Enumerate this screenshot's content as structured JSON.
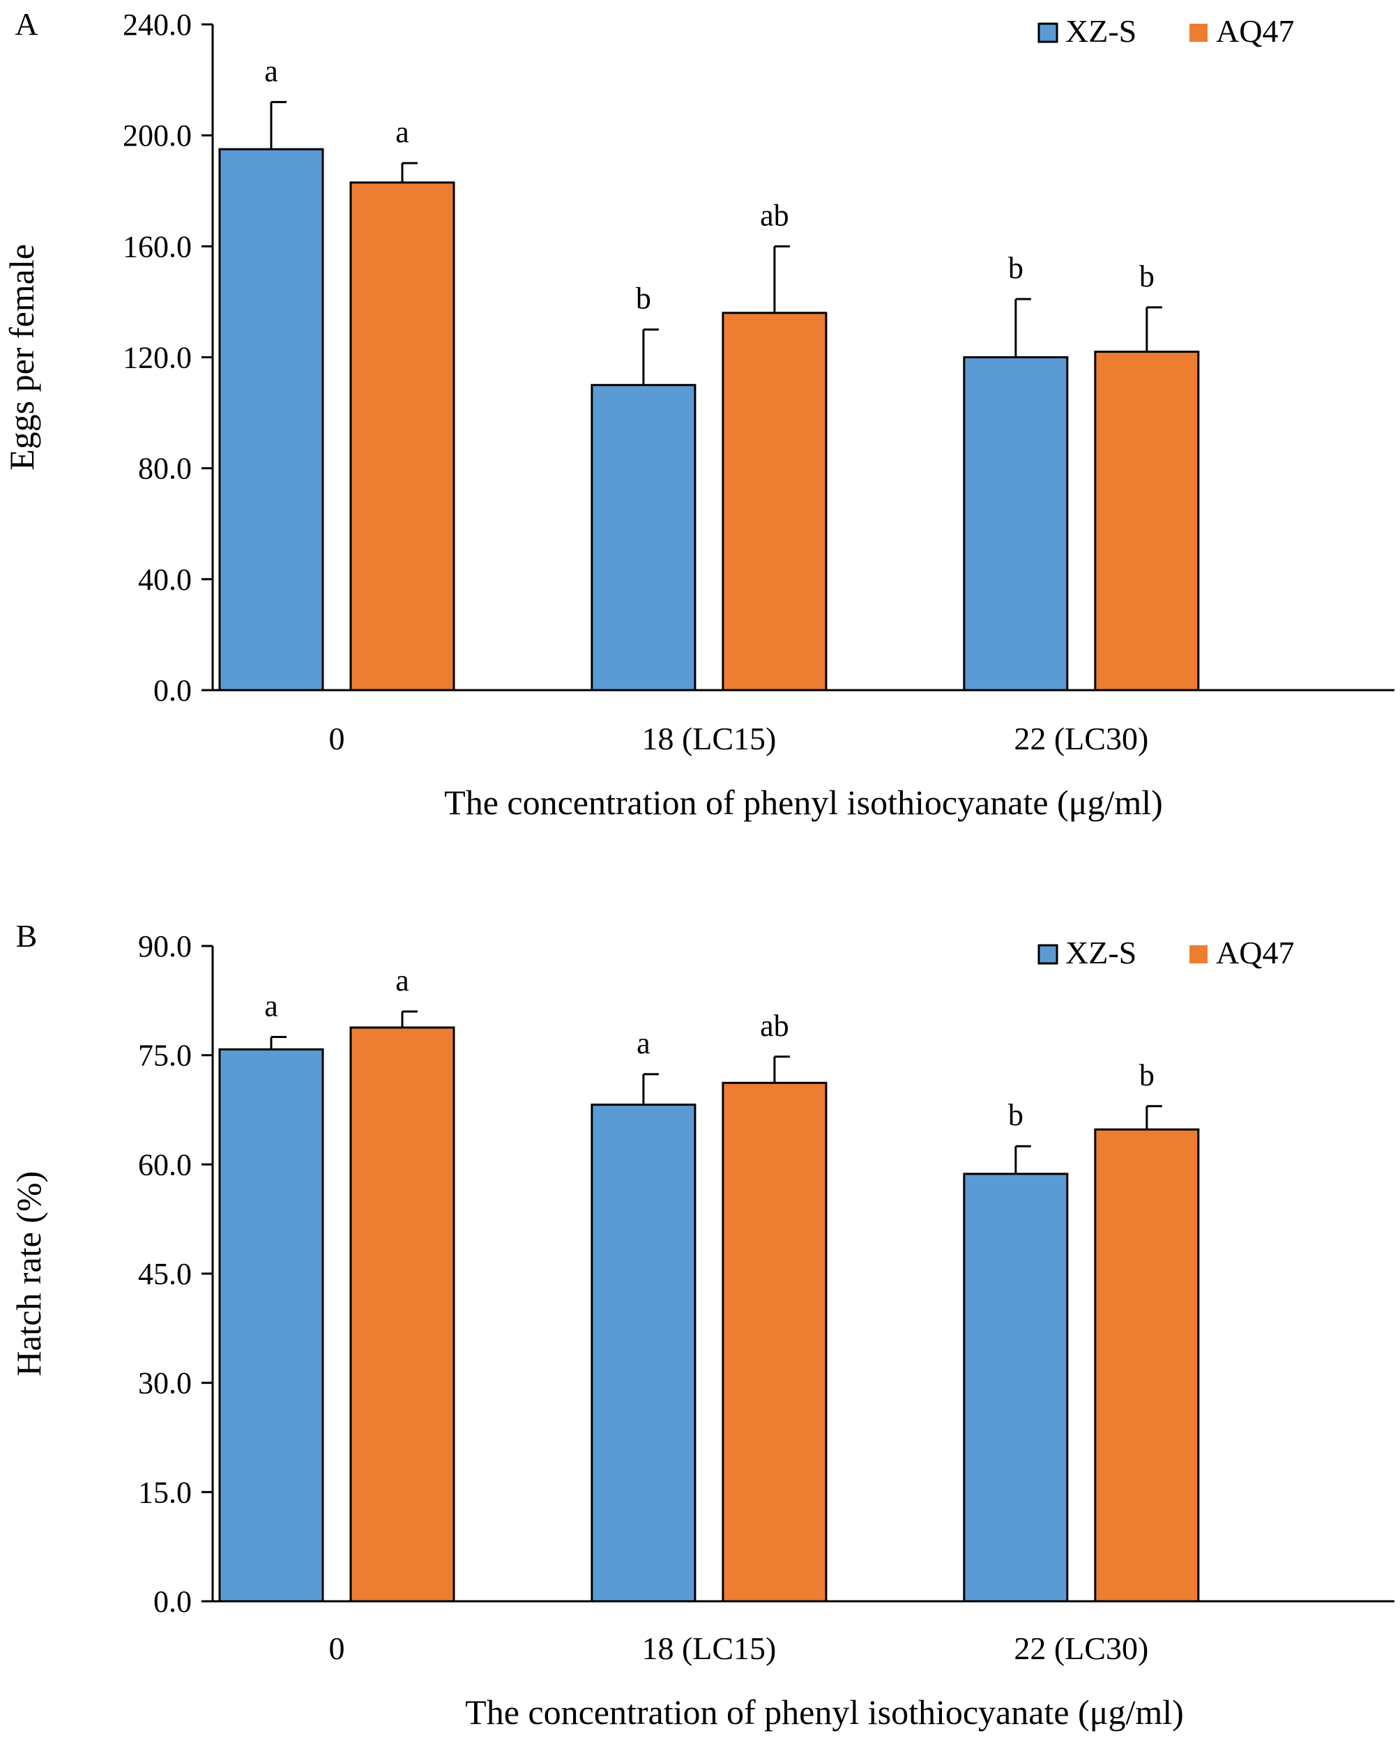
{
  "colors": {
    "XZ-S": "#5b9bd5",
    "AQ47": "#ed7d31",
    "axis": "#000000",
    "background": "#ffffff"
  },
  "chart_data": [
    {
      "type": "bar",
      "panel_label": "A",
      "title": "",
      "xlabel": "The concentration of phenyl isothiocyanate (μg/ml)",
      "ylabel": "Eggs per female",
      "categories": [
        "0",
        "18 (LC15)",
        "22 (LC30)"
      ],
      "ylim": [
        0,
        240
      ],
      "yticks": [
        0,
        40,
        80,
        120,
        160,
        200,
        240
      ],
      "ytick_labels": [
        "0.0",
        "40.0",
        "80.0",
        "120.0",
        "160.0",
        "200.0",
        "240.0"
      ],
      "grid": false,
      "legend_position": "top-right",
      "series": [
        {
          "name": "XZ-S",
          "values": [
            195,
            110,
            120
          ],
          "errors": [
            17,
            20,
            21
          ],
          "letters": [
            "a",
            "b",
            "b"
          ]
        },
        {
          "name": "AQ47",
          "values": [
            183,
            136,
            122
          ],
          "errors": [
            7,
            24,
            16
          ],
          "letters": [
            "a",
            "ab",
            "b"
          ]
        }
      ]
    },
    {
      "type": "bar",
      "panel_label": "B",
      "title": "",
      "xlabel": "The concentration of phenyl isothiocyanate (μg/ml)",
      "ylabel": "Hatch rate (%)",
      "categories": [
        "0",
        "18 (LC15)",
        "22 (LC30)"
      ],
      "ylim": [
        0,
        90
      ],
      "yticks": [
        0,
        15,
        30,
        45,
        60,
        75,
        90
      ],
      "ytick_labels": [
        "0.0",
        "15.0",
        "30.0",
        "45.0",
        "60.0",
        "75.0",
        "90.0"
      ],
      "grid": false,
      "legend_position": "top-right",
      "series": [
        {
          "name": "XZ-S",
          "values": [
            75.8,
            68.2,
            58.7
          ],
          "errors": [
            1.7,
            4.2,
            3.8
          ],
          "letters": [
            "a",
            "a",
            "b"
          ]
        },
        {
          "name": "AQ47",
          "values": [
            78.8,
            71.2,
            64.8
          ],
          "errors": [
            2.2,
            3.6,
            3.2
          ],
          "letters": [
            "a",
            "ab",
            "b"
          ]
        }
      ]
    }
  ]
}
